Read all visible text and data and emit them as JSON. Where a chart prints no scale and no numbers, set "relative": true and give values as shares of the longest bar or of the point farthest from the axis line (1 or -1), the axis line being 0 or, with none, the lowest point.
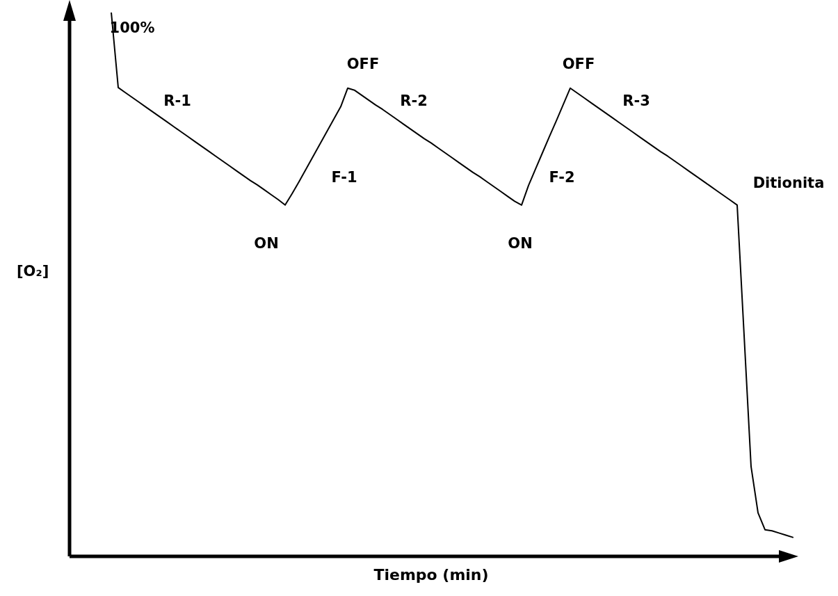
{
  "chart_data": {
    "type": "line",
    "relative": true,
    "xlabel": "Tiempo (min)",
    "ylabel": "[O₂]",
    "marker": "none",
    "line_style": "solid",
    "categories": [
      null,
      null,
      null,
      null,
      null,
      null,
      null,
      null,
      null,
      null,
      null,
      null,
      null,
      null,
      null,
      null,
      null,
      null,
      null,
      null,
      null,
      null,
      null,
      null,
      null,
      null,
      null,
      null,
      null,
      null,
      null,
      null,
      null,
      null,
      null,
      null,
      null,
      null,
      null,
      null,
      null,
      null,
      null,
      null,
      null,
      null,
      null,
      null,
      null,
      null,
      null,
      null,
      null,
      null,
      null,
      null,
      null,
      null,
      null,
      null,
      null,
      null,
      null,
      null,
      null,
      null,
      null,
      null,
      null,
      null,
      null,
      null,
      null,
      null,
      null,
      null,
      null,
      null,
      null,
      null,
      null,
      null,
      null,
      null,
      null,
      null,
      null,
      null,
      null,
      null,
      null,
      null,
      null,
      null,
      null,
      null,
      null,
      null,
      null,
      null,
      null,
      null,
      null,
      null,
      null
    ],
    "series": [
      {
        "color": "#000000",
        "values": [
          null,
          null,
          null,
          null,
          null,
          null,
          1.0,
          0.862,
          0.853,
          0.844,
          0.835,
          0.826,
          0.817,
          0.808,
          0.799,
          0.79,
          0.781,
          0.772,
          0.763,
          0.754,
          0.745,
          0.736,
          0.727,
          0.718,
          0.709,
          0.7,
          0.691,
          0.683,
          0.674,
          0.665,
          0.656,
          0.646,
          0.667,
          0.689,
          0.712,
          0.735,
          0.758,
          0.781,
          0.804,
          0.827,
          0.861,
          0.857,
          0.848,
          0.839,
          0.83,
          0.822,
          0.813,
          0.804,
          0.795,
          0.786,
          0.777,
          0.768,
          0.76,
          0.751,
          0.742,
          0.733,
          0.724,
          0.715,
          0.706,
          0.698,
          0.689,
          0.68,
          0.671,
          0.662,
          0.653,
          0.646,
          0.682,
          0.712,
          0.742,
          0.772,
          0.801,
          0.831,
          0.861,
          0.852,
          0.843,
          0.834,
          0.825,
          0.816,
          0.807,
          0.798,
          0.789,
          0.78,
          0.771,
          0.762,
          0.753,
          0.744,
          0.736,
          0.727,
          0.718,
          0.709,
          0.7,
          0.691,
          0.682,
          0.673,
          0.664,
          0.655,
          0.646,
          0.406,
          0.165,
          0.08,
          0.049,
          0.047,
          0.043,
          0.039,
          0.035
        ]
      }
    ],
    "annotations": [
      "100%",
      "R-1",
      "OFF",
      "R-2",
      "F-1",
      "ON",
      "OFF",
      "R-3",
      "F-2",
      "ON",
      "Ditionita"
    ]
  }
}
